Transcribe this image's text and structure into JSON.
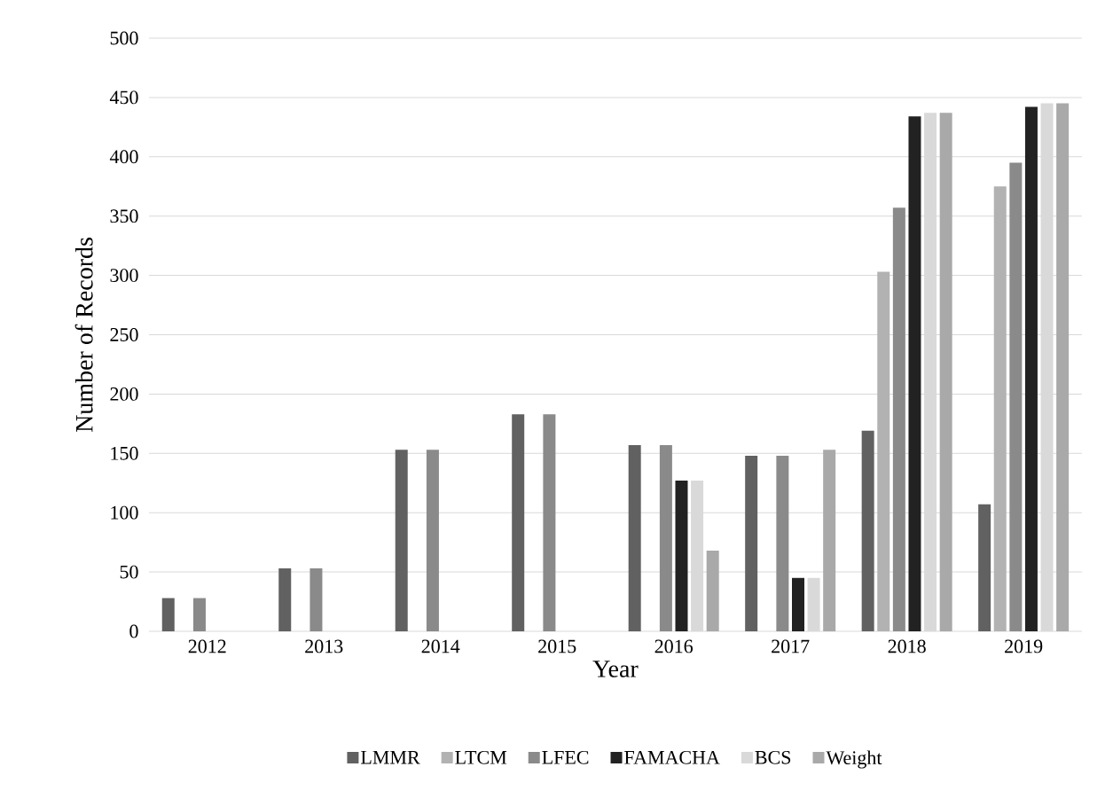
{
  "chart_data": {
    "type": "bar",
    "xlabel": "Year",
    "ylabel": "Number of Records",
    "categories": [
      "2012",
      "2013",
      "2014",
      "2015",
      "2016",
      "2017",
      "2018",
      "2019"
    ],
    "series": [
      {
        "name": "LMMR",
        "color": "#616161",
        "values": [
          28,
          53,
          153,
          183,
          157,
          148,
          169,
          107
        ]
      },
      {
        "name": "LTCM",
        "color": "#b2b2b2",
        "values": [
          null,
          null,
          null,
          null,
          null,
          null,
          303,
          375
        ]
      },
      {
        "name": "LFEC",
        "color": "#8a8a8a",
        "values": [
          28,
          53,
          153,
          183,
          157,
          148,
          357,
          395
        ]
      },
      {
        "name": "FAMACHA",
        "color": "#222222",
        "values": [
          null,
          null,
          null,
          null,
          127,
          45,
          434,
          442
        ]
      },
      {
        "name": "BCS",
        "color": "#d9d9d9",
        "values": [
          null,
          null,
          null,
          null,
          127,
          45,
          437,
          445
        ]
      },
      {
        "name": "Weight",
        "color": "#a9a9a9",
        "values": [
          null,
          null,
          null,
          null,
          68,
          153,
          437,
          445
        ]
      }
    ],
    "ylim": [
      0,
      500
    ],
    "yticks": [
      0,
      50,
      100,
      150,
      200,
      250,
      300,
      350,
      400,
      450,
      500
    ],
    "grid": "y",
    "legend": "bottom"
  }
}
